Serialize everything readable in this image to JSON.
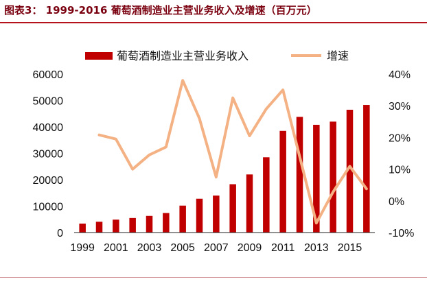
{
  "title": "图表3：   1999-2016 葡萄酒制造业主营业务收入及增速（百万元）",
  "chart_data": {
    "type": "bar",
    "x": [
      1999,
      2000,
      2001,
      2002,
      2003,
      2004,
      2005,
      2006,
      2007,
      2008,
      2009,
      2010,
      2011,
      2012,
      2013,
      2014,
      2015,
      2016
    ],
    "x_tick_labels": [
      "1999",
      "2001",
      "2003",
      "2005",
      "2007",
      "2009",
      "2011",
      "2013",
      "2015"
    ],
    "y_tick_labels": [
      "0",
      "10000",
      "20000",
      "30000",
      "40000",
      "50000",
      "60000"
    ],
    "y2_tick_labels": [
      "-10%",
      "0%",
      "10%",
      "20%",
      "30%",
      "40%"
    ],
    "ylim": [
      0,
      60000
    ],
    "y2lim": [
      -10,
      40
    ],
    "grid": false,
    "legend_position": "top",
    "series": [
      {
        "name": "葡萄酒制造业主营业务收入",
        "type": "bar",
        "axis": "left",
        "color": "#c00000",
        "values": [
          3400,
          4100,
          4900,
          5500,
          6300,
          7400,
          10200,
          12800,
          14000,
          18300,
          22000,
          28500,
          38500,
          43800,
          40800,
          42000,
          46500,
          48300
        ]
      },
      {
        "name": "增速",
        "type": "line",
        "axis": "right",
        "color": "#f4b183",
        "values": [
          null,
          20.8,
          19.5,
          10.0,
          14.5,
          17.0,
          38.0,
          26.0,
          7.5,
          32.5,
          20.5,
          29.0,
          35.0,
          14.0,
          -7.0,
          2.8,
          10.9,
          3.8
        ]
      }
    ]
  }
}
